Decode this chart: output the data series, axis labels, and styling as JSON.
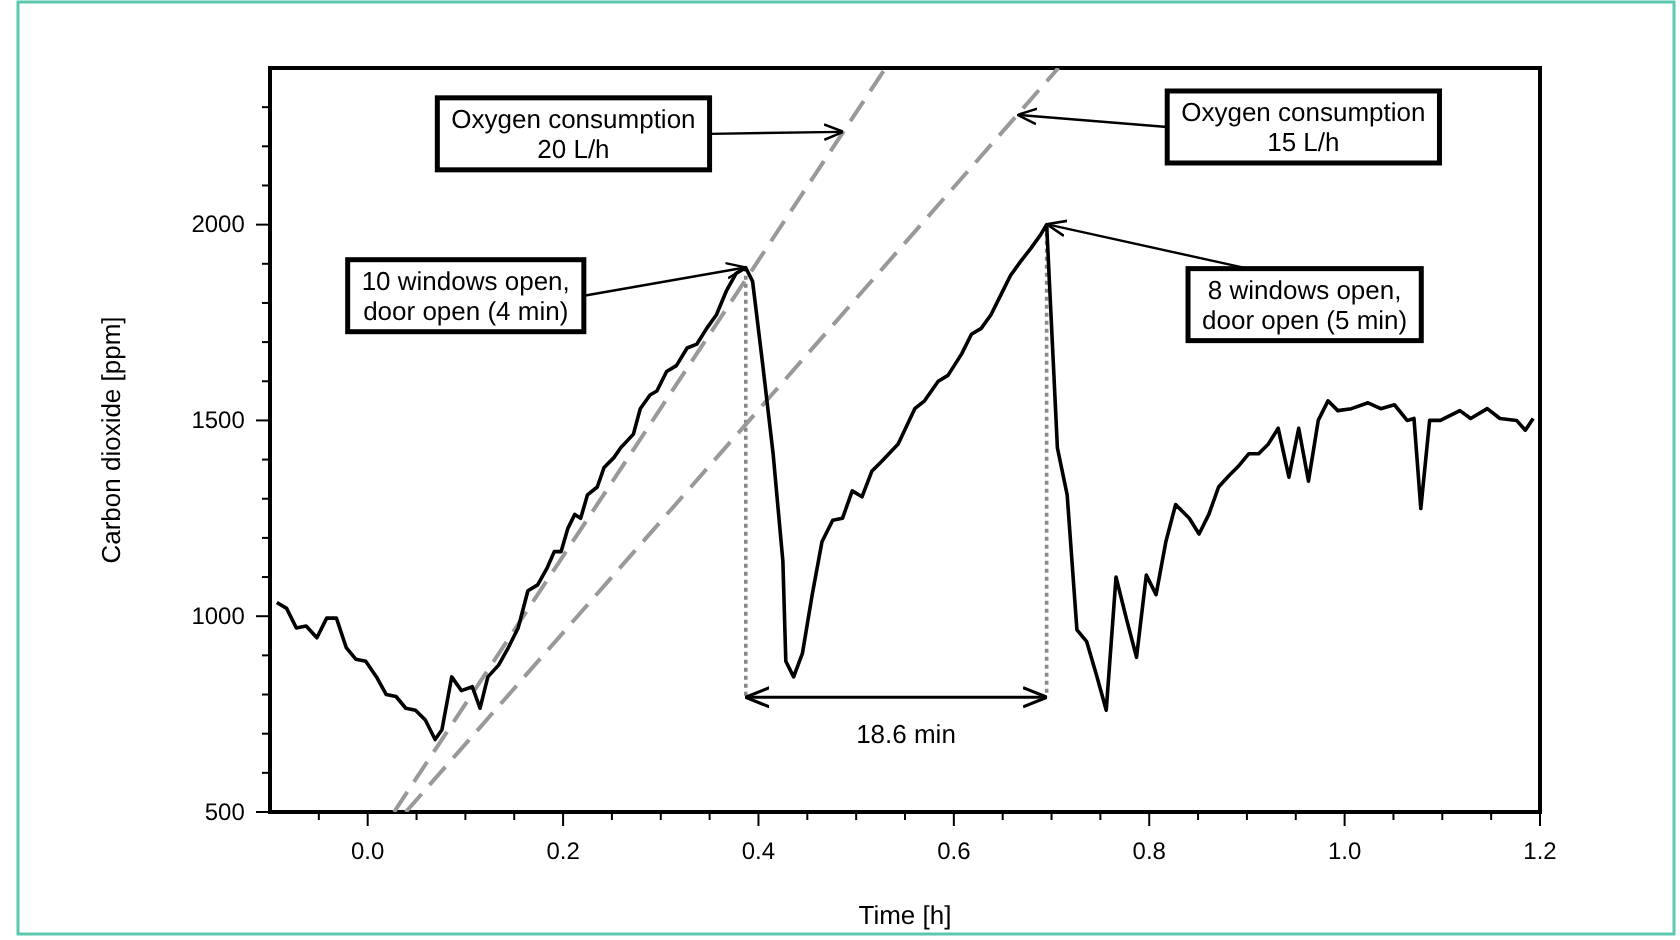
{
  "chart_data": {
    "type": "line",
    "xlabel": "Time [h]",
    "ylabel": "Carbon dioxide [ppm]",
    "xlim": [
      -0.1,
      1.2
    ],
    "ylim": [
      500,
      2400
    ],
    "xticks": [
      {
        "value": -0.05,
        "label": null
      },
      {
        "value": 0,
        "label": "0.0"
      },
      {
        "value": 0.05,
        "label": null
      },
      0.2,
      {
        "value": 0.1,
        "label": null
      },
      {
        "value": 0.15,
        "label": null
      },
      {
        "value": 0.25,
        "label": null
      },
      {
        "value": 0.3,
        "label": null
      },
      {
        "value": 0.35,
        "label": null
      },
      0.4,
      {
        "value": 0.45,
        "label": null
      },
      {
        "value": 0.5,
        "label": null
      },
      {
        "value": 0.55,
        "label": null
      },
      0.6,
      {
        "value": 0.65,
        "label": null
      },
      {
        "value": 0.7,
        "label": null
      },
      {
        "value": 0.75,
        "label": null
      },
      0.8,
      {
        "value": 0.85,
        "label": null
      },
      {
        "value": 0.9,
        "label": null
      },
      {
        "value": 0.95,
        "label": null
      },
      {
        "value": 1,
        "label": "1.0"
      },
      {
        "value": 1.05,
        "label": null
      },
      {
        "value": 1.1,
        "label": null
      },
      {
        "value": 1.15,
        "label": null
      },
      1.2
    ],
    "yticks": [
      500,
      {
        "value": 600,
        "label": null
      },
      {
        "value": 700,
        "label": null
      },
      {
        "value": 800,
        "label": null
      },
      {
        "value": 900,
        "label": null
      },
      1000,
      {
        "value": 1100,
        "label": null
      },
      {
        "value": 1200,
        "label": null
      },
      {
        "value": 1300,
        "label": null
      },
      {
        "value": 1400,
        "label": null
      },
      1500,
      {
        "value": 1600,
        "label": null
      },
      {
        "value": 1700,
        "label": null
      },
      {
        "value": 1800,
        "label": null
      },
      {
        "value": 1900,
        "label": null
      },
      2000,
      {
        "value": 2100,
        "label": null
      },
      {
        "value": 2200,
        "label": null
      },
      {
        "value": 2300,
        "label": null
      }
    ],
    "grid": false,
    "marker": "none",
    "series": [
      {
        "color": "#000000",
        "line_style": "solid",
        "x": [
          -0.093,
          -0.083,
          -0.073,
          -0.063,
          -0.052,
          -0.042,
          -0.032,
          -0.022,
          -0.012,
          -0.002,
          0.009,
          0.019,
          0.029,
          0.039,
          0.049,
          0.059,
          0.069,
          0.076,
          0.086,
          0.096,
          0.107,
          0.115,
          0.123,
          0.134,
          0.144,
          0.154,
          0.164,
          0.174,
          0.184,
          0.191,
          0.198,
          0.205,
          0.212,
          0.218,
          0.225,
          0.235,
          0.242,
          0.252,
          0.259,
          0.272,
          0.279,
          0.289,
          0.296,
          0.306,
          0.316,
          0.327,
          0.337,
          0.347,
          0.357,
          0.367,
          0.377,
          0.387,
          0.394,
          0.404,
          0.415,
          0.425,
          0.428,
          0.436,
          0.445,
          0.455,
          0.465,
          0.476,
          0.486,
          0.496,
          0.506,
          0.516,
          0.526,
          0.543,
          0.56,
          0.57,
          0.584,
          0.594,
          0.608,
          0.618,
          0.628,
          0.638,
          0.648,
          0.658,
          0.668,
          0.679,
          0.689,
          0.695,
          0.706,
          0.716,
          0.726,
          0.736,
          0.746,
          0.756,
          0.766,
          0.777,
          0.787,
          0.797,
          0.807,
          0.817,
          0.827,
          0.841,
          0.851,
          0.861,
          0.871,
          0.882,
          0.892,
          0.902,
          0.912,
          0.922,
          0.932,
          0.943,
          0.953,
          0.963,
          0.973,
          0.983,
          0.993,
          1.007,
          1.024,
          1.037,
          1.051,
          1.064,
          1.071,
          1.078,
          1.087,
          1.098,
          1.118,
          1.129,
          1.146,
          1.159,
          1.176,
          1.185,
          1.193
        ],
        "values": [
          1035,
          1020,
          970,
          975,
          945,
          995,
          995,
          920,
          890,
          885,
          845,
          800,
          795,
          765,
          760,
          735,
          685,
          710,
          845,
          810,
          820,
          765,
          845,
          875,
          920,
          970,
          1065,
          1080,
          1125,
          1165,
          1165,
          1225,
          1260,
          1250,
          1310,
          1330,
          1380,
          1405,
          1430,
          1465,
          1530,
          1565,
          1575,
          1625,
          1640,
          1685,
          1695,
          1735,
          1770,
          1830,
          1875,
          1890,
          1855,
          1650,
          1415,
          1140,
          885,
          845,
          905,
          1055,
          1190,
          1245,
          1250,
          1320,
          1305,
          1370,
          1395,
          1440,
          1530,
          1550,
          1600,
          1615,
          1670,
          1720,
          1735,
          1770,
          1820,
          1870,
          1905,
          1940,
          1975,
          2000,
          1430,
          1310,
          965,
          935,
          850,
          760,
          1100,
          990,
          895,
          1105,
          1055,
          1190,
          1285,
          1250,
          1210,
          1260,
          1330,
          1360,
          1385,
          1415,
          1415,
          1440,
          1480,
          1355,
          1480,
          1345,
          1500,
          1550,
          1525,
          1530,
          1545,
          1530,
          1540,
          1500,
          1505,
          1275,
          1500,
          1500,
          1525,
          1505,
          1530,
          1505,
          1500,
          1475,
          1505
        ]
      },
      {
        "color": "#999999",
        "line_style": "dashed",
        "x": [
          0.027,
          0.53
        ],
        "values": [
          500,
          2400
        ]
      },
      {
        "color": "#999999",
        "line_style": "dashed",
        "x": [
          0.039,
          0.707
        ],
        "values": [
          500,
          2400
        ]
      },
      {
        "color": "#888888",
        "line_style": "dotted",
        "x": [
          0.387,
          0.387
        ],
        "values": [
          1890,
          793
        ]
      },
      {
        "color": "#888888",
        "line_style": "dotted",
        "x": [
          0.695,
          0.695
        ],
        "values": [
          2000,
          793
        ]
      }
    ],
    "annotations": [
      {
        "text": "Oxygen consumption\n20 L/h",
        "x": 0.487,
        "y": 2237
      },
      {
        "text": "Oxygen consumption\n15 L/h",
        "x": 0.665,
        "y": 2280
      },
      {
        "text": "10 windows open,\ndoor open (4 min)",
        "x": 0.387,
        "y": 1890
      },
      {
        "text": "8 windows open,\ndoor open (5 min)",
        "x": 0.695,
        "y": 2000
      },
      "18.6 min"
    ]
  }
}
